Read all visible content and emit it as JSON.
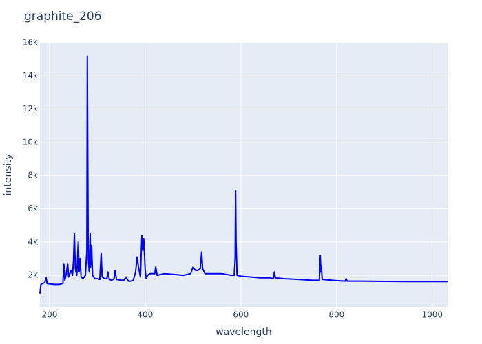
{
  "chart_data": {
    "type": "line",
    "title": "graphite_206",
    "x_label": "wavelength",
    "y_label": "intensity",
    "x": [
      180,
      182,
      185,
      190,
      193,
      195,
      200,
      210,
      220,
      228,
      230,
      232,
      235,
      238,
      240,
      245,
      248,
      250,
      252,
      254,
      257,
      260,
      262,
      264,
      266,
      270,
      275,
      278,
      279,
      280,
      281,
      283,
      285,
      286,
      288,
      290,
      295,
      300,
      305,
      308,
      310,
      315,
      320,
      322,
      325,
      330,
      335,
      337,
      340,
      350,
      355,
      360,
      365,
      370,
      375,
      380,
      383,
      386,
      390,
      393,
      395,
      397,
      400,
      402,
      405,
      410,
      420,
      422,
      425,
      440,
      460,
      480,
      495,
      500,
      505,
      510,
      515,
      518,
      520,
      525,
      540,
      560,
      580,
      586,
      588,
      589,
      590,
      592,
      600,
      620,
      640,
      660,
      668,
      670,
      672,
      690,
      720,
      750,
      764,
      766,
      767,
      768,
      770,
      790,
      818,
      820,
      822,
      850,
      900,
      950,
      1000,
      1032
    ],
    "values": [
      900,
      1450,
      1500,
      1550,
      1850,
      1500,
      1480,
      1450,
      1450,
      1500,
      2700,
      1700,
      2100,
      2700,
      1900,
      2300,
      2000,
      2800,
      4500,
      2400,
      2000,
      4000,
      2200,
      3000,
      1900,
      1800,
      2000,
      3500,
      15200,
      9000,
      3000,
      2200,
      4500,
      2500,
      3800,
      2000,
      1800,
      1800,
      1750,
      3300,
      1900,
      1800,
      1800,
      2200,
      1750,
      1700,
      1800,
      2300,
      1750,
      1700,
      1700,
      1900,
      1650,
      1650,
      1700,
      2200,
      3100,
      2500,
      1900,
      4400,
      3500,
      4200,
      2300,
      1800,
      2000,
      2100,
      2100,
      2500,
      2000,
      2100,
      2050,
      2000,
      2100,
      2500,
      2300,
      2300,
      2400,
      3400,
      2400,
      2100,
      2100,
      2100,
      2000,
      2000,
      3000,
      7100,
      4000,
      2000,
      1950,
      1900,
      1850,
      1850,
      1800,
      2200,
      1850,
      1800,
      1750,
      1700,
      1700,
      3200,
      2200,
      2600,
      1750,
      1700,
      1650,
      1800,
      1650,
      1650,
      1630,
      1620,
      1620,
      1620
    ],
    "color": "#0000ff",
    "xlim": [
      180,
      1032
    ],
    "ylim": [
      100,
      16000
    ],
    "xticks": [
      200,
      400,
      600,
      800,
      1000
    ],
    "yticks": [
      {
        "value": 2000,
        "label": "2k"
      },
      {
        "value": 4000,
        "label": "4k"
      },
      {
        "value": 6000,
        "label": "6k"
      },
      {
        "value": 8000,
        "label": "8k"
      },
      {
        "value": 10000,
        "label": "10k"
      },
      {
        "value": 12000,
        "label": "12k"
      },
      {
        "value": 14000,
        "label": "14k"
      },
      {
        "value": 16000,
        "label": "16k"
      }
    ],
    "grid": true
  }
}
